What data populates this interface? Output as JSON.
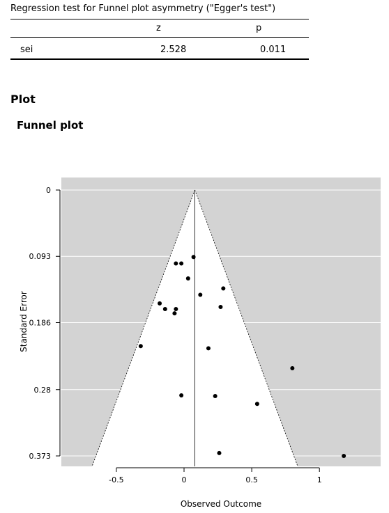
{
  "egger_table": {
    "title": "Regression test for Funnel plot asymmetry (\"Egger's test\")",
    "headers": [
      "",
      "z",
      "p"
    ],
    "row": {
      "label": "sei",
      "z": "2.528",
      "p": "0.011"
    }
  },
  "section_title": "Plot",
  "plot_title": "Funnel plot",
  "chart_data": {
    "type": "scatter",
    "xlabel": "Observed Outcome",
    "ylabel": "Standard Error",
    "xlim": [
      -0.9,
      1.45
    ],
    "ylim": [
      0.373,
      0
    ],
    "x_ticks": [
      -0.5,
      0,
      0.5,
      1
    ],
    "x_tick_labels": [
      "-0.5",
      "0",
      "0.5",
      "1"
    ],
    "y_ticks": [
      0,
      0.093,
      0.186,
      0.28,
      0.373
    ],
    "y_tick_labels": [
      "0",
      "0.093",
      "0.186",
      "0.28",
      "0.373"
    ],
    "grid": true,
    "pooled_estimate": 0.08,
    "points": [
      {
        "x": 0.07,
        "y": 0.094
      },
      {
        "x": -0.06,
        "y": 0.103
      },
      {
        "x": -0.02,
        "y": 0.103
      },
      {
        "x": 0.03,
        "y": 0.124
      },
      {
        "x": 0.29,
        "y": 0.138
      },
      {
        "x": 0.12,
        "y": 0.147
      },
      {
        "x": -0.18,
        "y": 0.159
      },
      {
        "x": -0.14,
        "y": 0.167
      },
      {
        "x": -0.06,
        "y": 0.167
      },
      {
        "x": 0.27,
        "y": 0.164
      },
      {
        "x": -0.07,
        "y": 0.173
      },
      {
        "x": -0.32,
        "y": 0.219
      },
      {
        "x": 0.18,
        "y": 0.222
      },
      {
        "x": 0.8,
        "y": 0.25
      },
      {
        "x": -0.02,
        "y": 0.288
      },
      {
        "x": 0.23,
        "y": 0.289
      },
      {
        "x": 0.54,
        "y": 0.3
      },
      {
        "x": 0.26,
        "y": 0.369
      },
      {
        "x": 1.18,
        "y": 0.373
      }
    ]
  }
}
